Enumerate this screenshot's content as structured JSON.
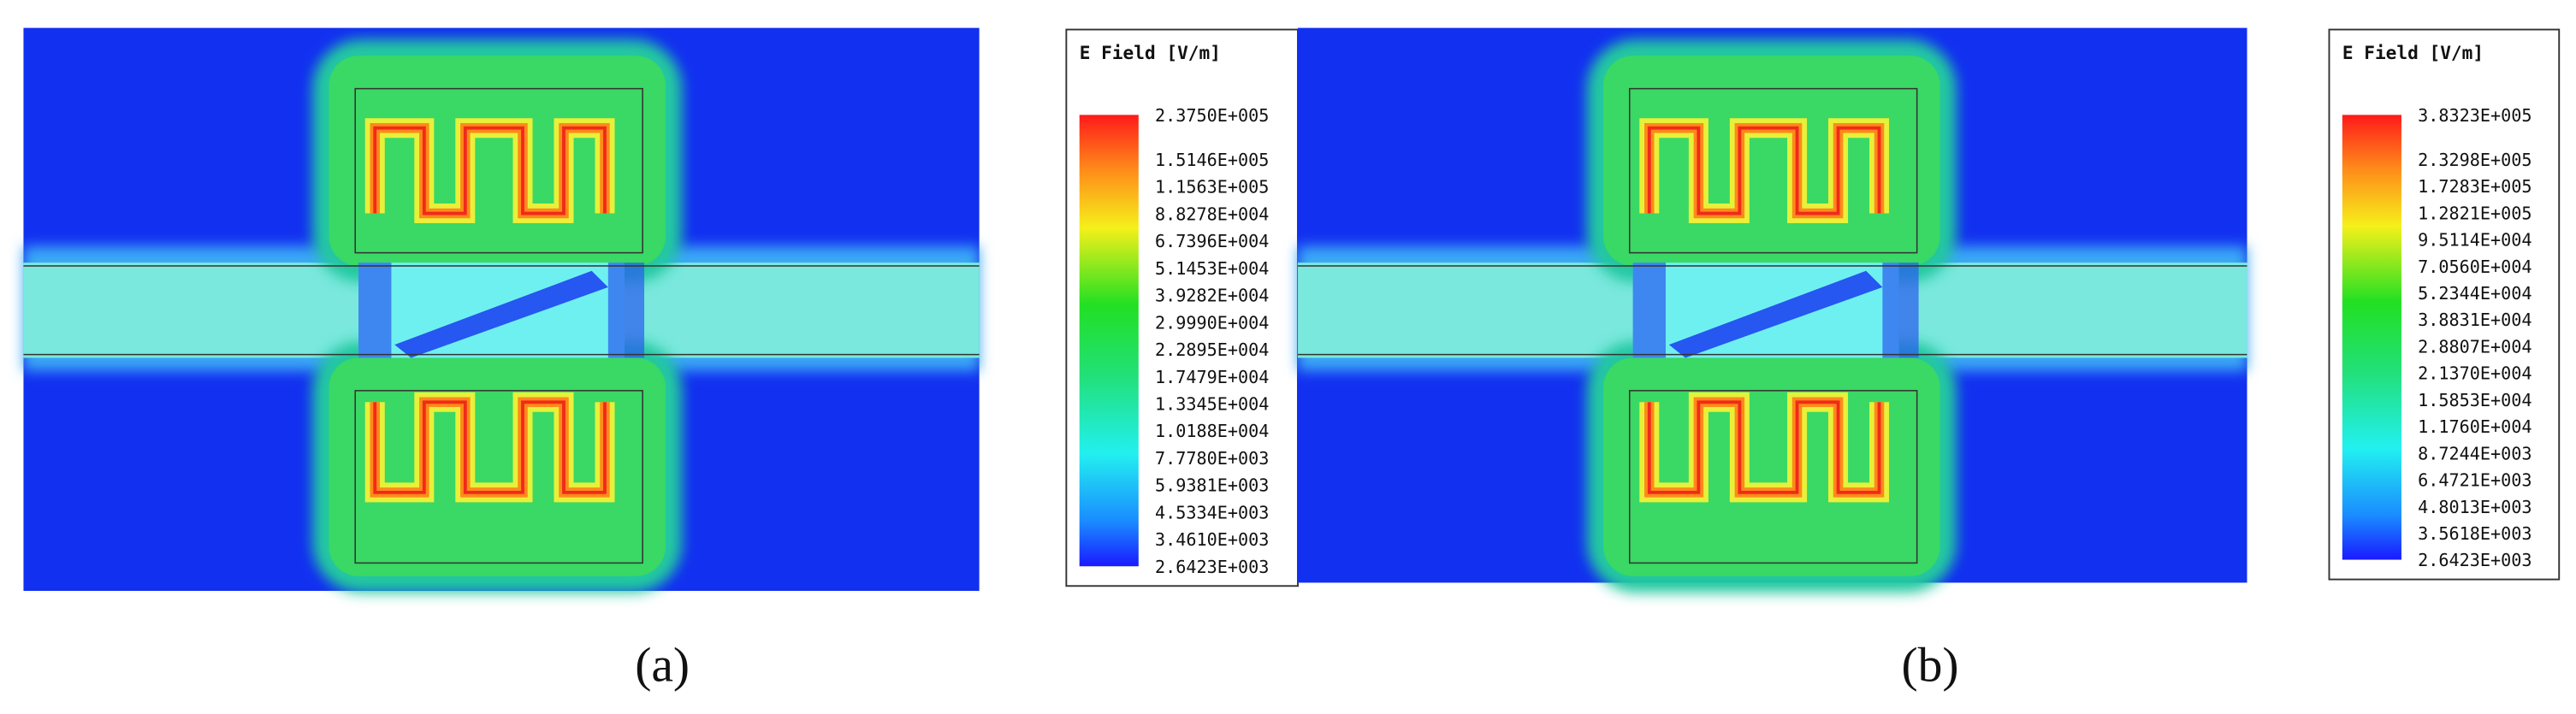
{
  "panels": [
    {
      "caption": "(a)",
      "legend": {
        "title": "E Field [V/m]",
        "labels": [
          "2.3750E+005",
          "1.5146E+005",
          "1.1563E+005",
          "8.8278E+004",
          "6.7396E+004",
          "5.1453E+004",
          "3.9282E+004",
          "2.9990E+004",
          "2.2895E+004",
          "1.7479E+004",
          "1.3345E+004",
          "1.0188E+004",
          "7.7780E+003",
          "5.9381E+003",
          "4.5334E+003",
          "3.4610E+003",
          "2.6423E+003"
        ]
      }
    },
    {
      "caption": "(b)",
      "legend": {
        "title": "E Field [V/m]",
        "labels": [
          "3.8323E+005",
          "2.3298E+005",
          "1.7283E+005",
          "1.2821E+005",
          "9.5114E+004",
          "7.0560E+004",
          "5.2344E+004",
          "3.8831E+004",
          "2.8807E+004",
          "2.1370E+004",
          "1.5853E+004",
          "1.1760E+004",
          "8.7244E+003",
          "6.4721E+003",
          "4.8013E+003",
          "3.5618E+003",
          "2.6423E+003"
        ]
      }
    }
  ]
}
